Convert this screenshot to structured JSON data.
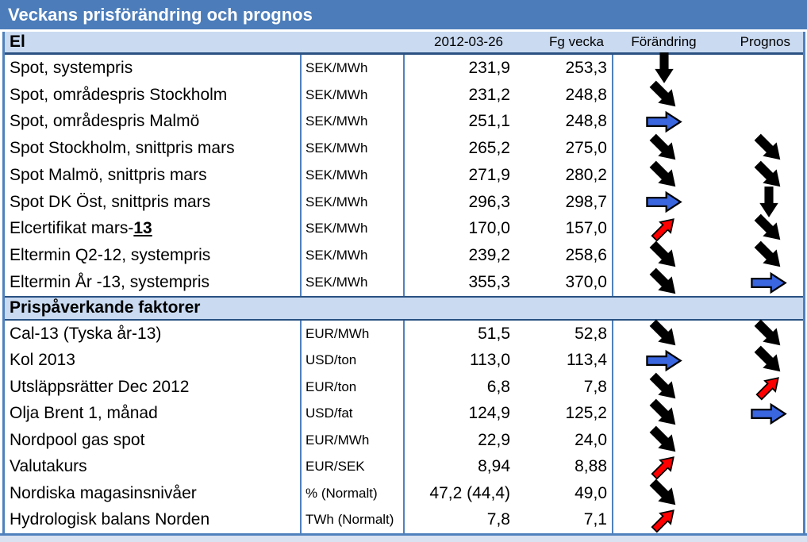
{
  "title": "Veckans prisförändring och prognos",
  "columns": {
    "date": "2012-03-26",
    "prev_week": "Fg vecka",
    "change": "Förändring",
    "forecast": "Prognos"
  },
  "colors": {
    "title_bar": "#4C7DBA",
    "band": "#C9DAF1",
    "band_border": "#2A5182",
    "cell_border": "#4F81BD",
    "arrow_black": "#000000",
    "arrow_blue": "#3A66E0",
    "arrow_red": "#FF0000"
  },
  "sections": [
    {
      "label": "El",
      "rows": [
        {
          "name": "Spot, systempris",
          "unit": "SEK/MWh",
          "current": "231,9",
          "prev": "253,3",
          "change": "black-down",
          "forecast": null
        },
        {
          "name": "Spot, områdespris Stockholm",
          "unit": "SEK/MWh",
          "current": "231,2",
          "prev": "248,8",
          "change": "black-down-right",
          "forecast": null
        },
        {
          "name": "Spot, områdespris Malmö",
          "unit": "SEK/MWh",
          "current": "251,1",
          "prev": "248,8",
          "change": "blue-right",
          "forecast": null
        },
        {
          "name": "Spot Stockholm, snittpris mars",
          "unit": "SEK/MWh",
          "current": "265,2",
          "prev": "275,0",
          "change": "black-down-right",
          "forecast": "black-down-right"
        },
        {
          "name": "Spot Malmö, snittpris mars",
          "unit": "SEK/MWh",
          "current": "271,9",
          "prev": "280,2",
          "change": "black-down-right",
          "forecast": "black-down-right"
        },
        {
          "name": "Spot DK Öst, snittpris mars",
          "unit": "SEK/MWh",
          "current": "296,3",
          "prev": "298,7",
          "change": "blue-right",
          "forecast": "black-down"
        },
        {
          "name": "Elcertifikat mars-",
          "name_emph": "13",
          "unit": "SEK/MWh",
          "current": "170,0",
          "prev": "157,0",
          "change": "red-up-right",
          "forecast": "black-down-right"
        },
        {
          "name": "Eltermin Q2-12, systempris",
          "unit": "SEK/MWh",
          "current": "239,2",
          "prev": "258,6",
          "change": "black-down-right",
          "forecast": "black-down-right"
        },
        {
          "name": "Eltermin År -13, systempris",
          "unit": "SEK/MWh",
          "current": "355,3",
          "prev": "370,0",
          "change": "black-down-right",
          "forecast": "blue-right"
        }
      ]
    },
    {
      "label": "Prispåverkande faktorer",
      "rows": [
        {
          "name": "Cal-13 (Tyska år-13)",
          "unit": "EUR/MWh",
          "current": "51,5",
          "prev": "52,8",
          "change": "black-down-right",
          "forecast": "black-down-right"
        },
        {
          "name": "Kol 2013",
          "unit": "USD/ton",
          "current": "113,0",
          "prev": "113,4",
          "change": "blue-right",
          "forecast": "black-down-right"
        },
        {
          "name": "Utsläppsrätter Dec 2012",
          "unit": "EUR/ton",
          "current": "6,8",
          "prev": "7,8",
          "change": "black-down-right",
          "forecast": "red-up-right"
        },
        {
          "name": "Olja Brent 1, månad",
          "unit": "USD/fat",
          "current": "124,9",
          "prev": "125,2",
          "change": "black-down-right",
          "forecast": "blue-right"
        },
        {
          "name": "Nordpool gas spot",
          "unit": "EUR/MWh",
          "current": "22,9",
          "prev": "24,0",
          "change": "black-down-right",
          "forecast": null
        },
        {
          "name": "Valutakurs",
          "unit": "EUR/SEK",
          "current": "8,94",
          "prev": "8,88",
          "change": "red-up-right",
          "forecast": null
        },
        {
          "name": "Nordiska magasinsnivåer",
          "unit": "% (Normalt)",
          "current": "47,2 (44,4)",
          "prev": "49,0",
          "change": "black-down-right",
          "forecast": null
        },
        {
          "name": "Hydrologisk balans Norden",
          "unit": "TWh (Normalt)",
          "current": "7,8",
          "prev": "7,1",
          "change": "red-up-right",
          "forecast": null
        }
      ]
    }
  ]
}
